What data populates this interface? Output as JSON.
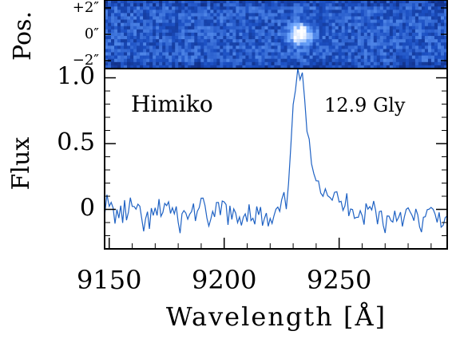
{
  "chart_data": [
    {
      "type": "heatmap",
      "panel": "2d-spectrum",
      "ylabel": "Pos.",
      "ytick_labels": [
        "+2″",
        "0″",
        "−2″"
      ],
      "yticks": [
        2,
        0,
        -2
      ],
      "ylim": [
        -2.6,
        2.6
      ],
      "xlim": [
        9148,
        9297
      ],
      "source": {
        "center_x": 9233,
        "center_y": 0,
        "peak": "bright"
      },
      "colormap": [
        "#0a1a5e",
        "#1b4fc2",
        "#6fa8ff",
        "#ffffff"
      ]
    },
    {
      "type": "line",
      "panel": "1d-spectrum",
      "annotations": [
        "Himiko",
        "12.9 Gly"
      ],
      "xlabel": "Wavelength [Å]",
      "ylabel": "Flux",
      "xticks": [
        9150,
        9200,
        9250
      ],
      "yticks": [
        0,
        0.5,
        1.0
      ],
      "ytick_labels": [
        "0",
        "0.5",
        "1.0"
      ],
      "xlim": [
        9148,
        9297
      ],
      "ylim": [
        -0.3,
        1.07
      ],
      "series": [
        {
          "color": "#1f62c4",
          "x": [
            9148,
            9150,
            9155,
            9160,
            9165,
            9170,
            9175,
            9180,
            9185,
            9190,
            9195,
            9200,
            9205,
            9210,
            9215,
            9220,
            9225,
            9228,
            9229,
            9230,
            9231,
            9232,
            9233,
            9234,
            9235,
            9236,
            9237,
            9238,
            9240,
            9242,
            9245,
            9248,
            9250,
            9255,
            9260,
            9265,
            9270,
            9275,
            9280,
            9285,
            9290,
            9297
          ],
          "y": [
            0.05,
            0.0,
            -0.05,
            0.02,
            -0.12,
            -0.05,
            0.05,
            -0.1,
            -0.02,
            0.0,
            -0.08,
            0.02,
            -0.1,
            0.0,
            -0.05,
            -0.12,
            0.0,
            0.1,
            0.5,
            0.85,
            0.95,
            1.02,
            1.0,
            1.02,
            0.78,
            0.6,
            0.48,
            0.35,
            0.3,
            0.2,
            0.15,
            0.1,
            0.02,
            0.05,
            -0.05,
            0.02,
            -0.1,
            -0.02,
            -0.05,
            -0.1,
            -0.05,
            -0.05
          ]
        }
      ]
    }
  ]
}
